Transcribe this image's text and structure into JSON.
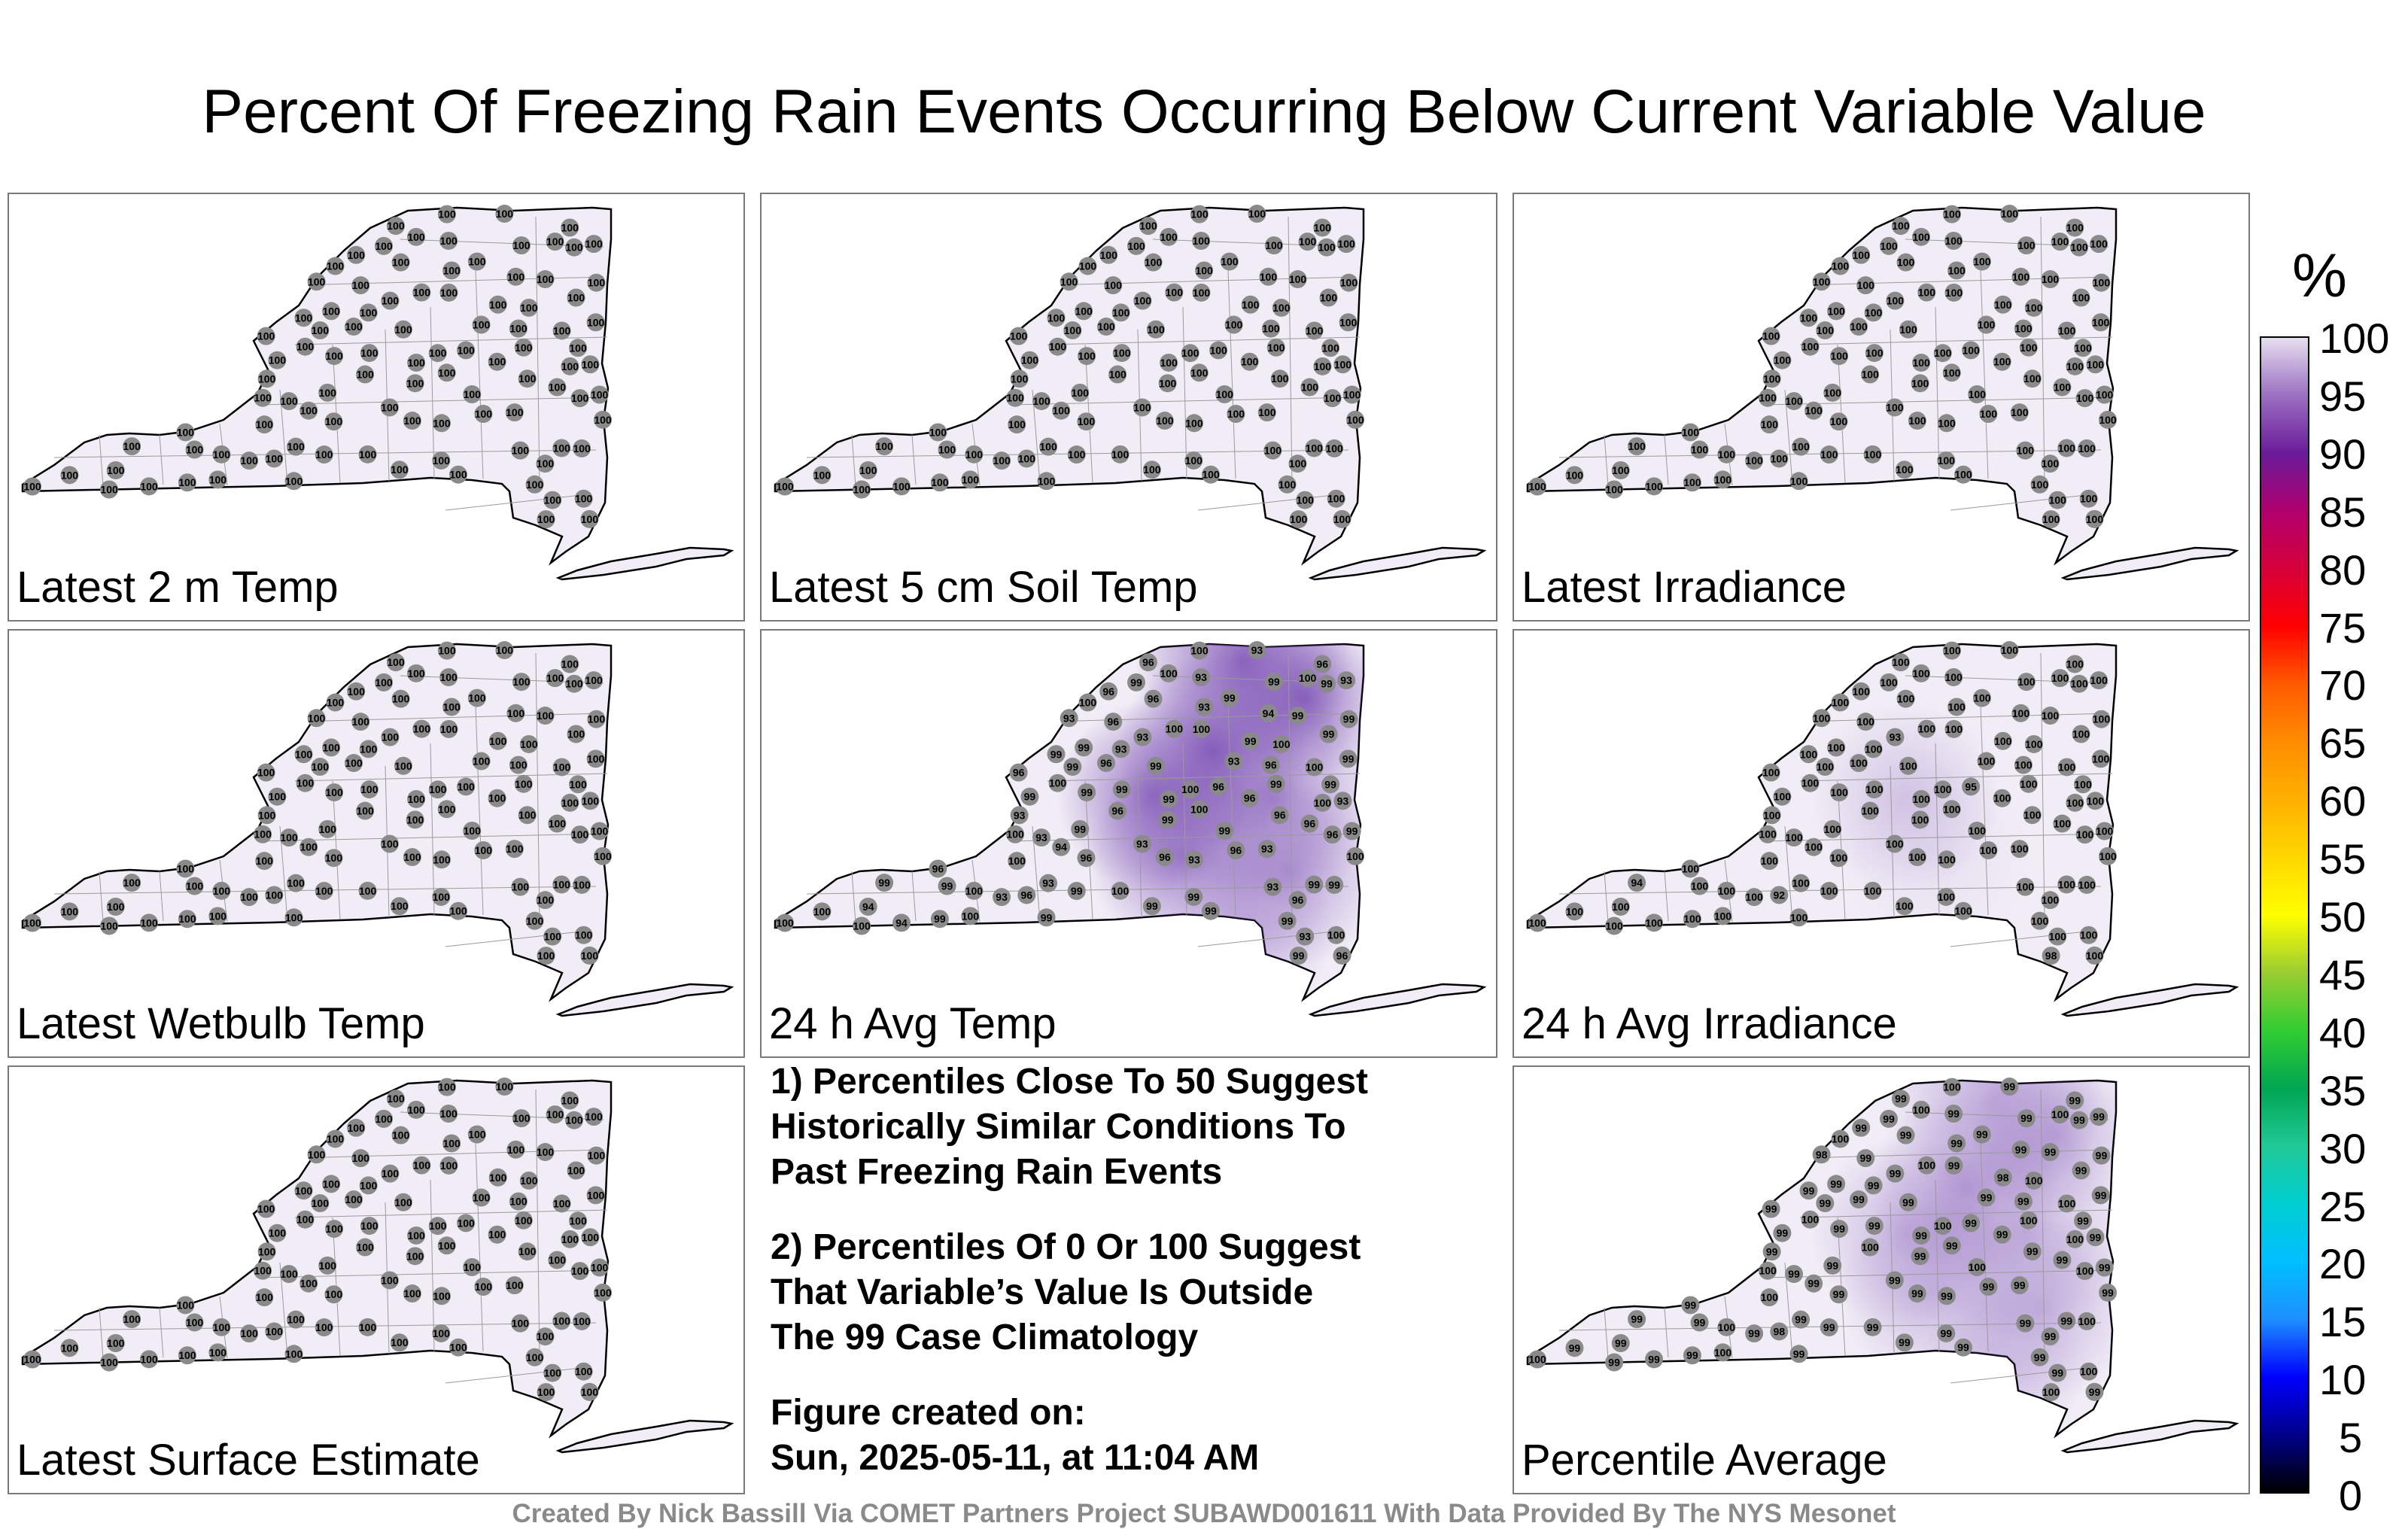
{
  "title": "Percent Of Freezing Rain Events Occurring Below Current Variable Value",
  "panels": [
    {
      "label": "Latest 2 m Temp",
      "values": [
        "100",
        "100",
        "100",
        "100",
        "100",
        "100",
        "100",
        "100",
        "100",
        "100",
        "100",
        "100",
        "100",
        "100",
        "100",
        "100",
        "100",
        "100",
        "100",
        "100",
        "100",
        "100",
        "100",
        "100",
        "100",
        "100",
        "100",
        "100",
        "100",
        "100",
        "100",
        "100",
        "100",
        "100",
        "100",
        "100",
        "100",
        "100",
        "100",
        "100",
        "100",
        "100",
        "100",
        "100",
        "100",
        "100",
        "100",
        "100",
        "100",
        "100",
        "100",
        "100",
        "100",
        "100",
        "100",
        "100",
        "100",
        "100",
        "100",
        "100",
        "100",
        "100",
        "100",
        "100",
        "100",
        "100",
        "100",
        "100",
        "100",
        "100",
        "100",
        "100",
        "100",
        "100",
        "100",
        "100",
        "100",
        "100",
        "100",
        "100",
        "100",
        "100",
        "100",
        "100",
        "100",
        "100",
        "100",
        "100",
        "100",
        "100",
        "100",
        "100",
        "100",
        "100",
        "100",
        "100",
        "100",
        "100",
        "100",
        "100"
      ],
      "shade": [
        0,
        0,
        0,
        0,
        0,
        0,
        0,
        0
      ]
    },
    {
      "label": "Latest 5 cm Soil Temp",
      "values": [
        "100",
        "100",
        "100",
        "100",
        "100",
        "100",
        "100",
        "100",
        "100",
        "100",
        "100",
        "100",
        "100",
        "100",
        "100",
        "100",
        "100",
        "100",
        "100",
        "100",
        "100",
        "100",
        "100",
        "100",
        "100",
        "100",
        "100",
        "100",
        "100",
        "100",
        "100",
        "100",
        "100",
        "100",
        "100",
        "100",
        "100",
        "100",
        "100",
        "100",
        "100",
        "100",
        "100",
        "100",
        "100",
        "100",
        "100",
        "100",
        "100",
        "100",
        "100",
        "100",
        "100",
        "100",
        "100",
        "100",
        "100",
        "100",
        "100",
        "100",
        "100",
        "100",
        "100",
        "100",
        "100",
        "100",
        "100",
        "100",
        "100",
        "100",
        "100",
        "100",
        "100",
        "100",
        "100",
        "100",
        "100",
        "100",
        "100",
        "100",
        "100",
        "100",
        "100",
        "100",
        "100",
        "100",
        "100",
        "100",
        "100",
        "100",
        "100",
        "100",
        "100",
        "100",
        "100",
        "100",
        "100",
        "100",
        "100",
        "100"
      ],
      "shade": [
        0,
        0,
        0,
        0,
        0,
        0,
        0,
        0
      ]
    },
    {
      "label": "Latest Irradiance",
      "values": [
        "100",
        "100",
        "100",
        "100",
        "100",
        "100",
        "100",
        "100",
        "100",
        "100",
        "100",
        "100",
        "100",
        "100",
        "100",
        "100",
        "100",
        "100",
        "100",
        "100",
        "100",
        "100",
        "100",
        "100",
        "100",
        "100",
        "100",
        "100",
        "100",
        "100",
        "100",
        "100",
        "100",
        "100",
        "100",
        "100",
        "100",
        "100",
        "100",
        "100",
        "100",
        "100",
        "100",
        "100",
        "100",
        "100",
        "100",
        "100",
        "100",
        "100",
        "100",
        "100",
        "100",
        "100",
        "100",
        "100",
        "100",
        "100",
        "100",
        "100",
        "100",
        "100",
        "100",
        "100",
        "100",
        "100",
        "100",
        "100",
        "100",
        "100",
        "100",
        "100",
        "100",
        "100",
        "100",
        "100",
        "100",
        "100",
        "100",
        "100",
        "100",
        "100",
        "100",
        "100",
        "100",
        "100",
        "100",
        "100",
        "100",
        "100",
        "100",
        "100",
        "100",
        "100",
        "100",
        "100",
        "100",
        "100",
        "100",
        "100"
      ],
      "shade": [
        0,
        0,
        0,
        0,
        0,
        0,
        0,
        0
      ]
    },
    {
      "label": "Latest Wetbulb Temp",
      "values": [
        "100",
        "100",
        "100",
        "100",
        "100",
        "100",
        "100",
        "100",
        "100",
        "100",
        "100",
        "100",
        "100",
        "100",
        "100",
        "100",
        "100",
        "100",
        "100",
        "100",
        "100",
        "100",
        "100",
        "100",
        "100",
        "100",
        "100",
        "100",
        "100",
        "100",
        "100",
        "100",
        "100",
        "100",
        "100",
        "100",
        "100",
        "100",
        "100",
        "100",
        "100",
        "100",
        "100",
        "100",
        "100",
        "100",
        "100",
        "100",
        "100",
        "100",
        "100",
        "100",
        "100",
        "100",
        "100",
        "100",
        "100",
        "100",
        "100",
        "100",
        "100",
        "100",
        "100",
        "100",
        "100",
        "100",
        "100",
        "100",
        "100",
        "100",
        "100",
        "100",
        "100",
        "100",
        "100",
        "100",
        "100",
        "100",
        "100",
        "100",
        "100",
        "100",
        "100",
        "100",
        "100",
        "100",
        "100",
        "100",
        "100",
        "100",
        "100",
        "100",
        "100",
        "100",
        "100",
        "100",
        "100",
        "100",
        "100",
        "100"
      ],
      "shade": [
        0,
        0,
        0,
        0,
        0,
        0,
        0,
        0
      ]
    },
    {
      "label": "24 h Avg Temp",
      "values": [
        "100",
        "100",
        "93",
        "93",
        "99",
        "99",
        "93",
        "96",
        "93",
        "93",
        "94",
        "93",
        "93",
        "93",
        "93",
        "96",
        "93",
        "93",
        "93",
        "93",
        "94",
        "93",
        "96",
        "93",
        "93",
        "96",
        "96",
        "100",
        "99",
        "100",
        "99",
        "99",
        "96",
        "100",
        "99",
        "99",
        "96",
        "100",
        "99",
        "99",
        "99",
        "100",
        "99",
        "99",
        "99",
        "99",
        "96",
        "99",
        "100",
        "100",
        "99",
        "99",
        "96",
        "96",
        "99",
        "93",
        "93",
        "99",
        "96",
        "99",
        "96",
        "96",
        "94",
        "96",
        "96",
        "96",
        "94",
        "99",
        "99",
        "96",
        "96",
        "99",
        "99",
        "99",
        "96",
        "99",
        "99",
        "99",
        "99",
        "100",
        "100",
        "96",
        "99",
        "99",
        "99",
        "96",
        "99",
        "99",
        "100",
        "100",
        "100",
        "100",
        "100",
        "100",
        "99",
        "100",
        "100",
        "100",
        "100",
        "100"
      ],
      "shade": [
        1,
        1,
        1,
        0.9,
        0.7,
        0.8,
        0.6,
        0.4
      ]
    },
    {
      "label": "24 h Avg Irradiance",
      "values": [
        "100",
        "100",
        "100",
        "100",
        "100",
        "100",
        "100",
        "100",
        "100",
        "100",
        "100",
        "100",
        "100",
        "100",
        "100",
        "100",
        "100",
        "100",
        "100",
        "93",
        "100",
        "100",
        "100",
        "100",
        "100",
        "100",
        "100",
        "100",
        "100",
        "100",
        "100",
        "100",
        "100",
        "100",
        "100",
        "100",
        "100",
        "100",
        "100",
        "100",
        "100",
        "100",
        "100",
        "100",
        "100",
        "100",
        "100",
        "100",
        "100",
        "100",
        "100",
        "100",
        "92",
        "95",
        "94",
        "100",
        "100",
        "100",
        "100",
        "100",
        "100",
        "100",
        "100",
        "100",
        "100",
        "100",
        "100",
        "98",
        "100",
        "100",
        "100",
        "100",
        "100",
        "100",
        "100",
        "100",
        "100",
        "100",
        "100",
        "100",
        "100",
        "100",
        "100",
        "100",
        "100",
        "100",
        "100",
        "100",
        "100",
        "100",
        "100",
        "100",
        "100",
        "100",
        "100",
        "100",
        "100",
        "100",
        "100",
        "100"
      ],
      "shade": [
        0,
        0,
        0,
        0.3,
        0,
        0.1,
        0,
        0
      ]
    },
    {
      "label": "Latest Surface Estimate",
      "values": [
        "100",
        "100",
        "100",
        "100",
        "100",
        "100",
        "100",
        "100",
        "100",
        "100",
        "100",
        "100",
        "100",
        "100",
        "100",
        "100",
        "100",
        "100",
        "100",
        "100",
        "100",
        "100",
        "100",
        "100",
        "100",
        "100",
        "100",
        "100",
        "100",
        "100",
        "100",
        "100",
        "100",
        "100",
        "100",
        "100",
        "100",
        "100",
        "100",
        "100",
        "100",
        "100",
        "100",
        "100",
        "100",
        "100",
        "100",
        "100",
        "100",
        "100",
        "100",
        "100",
        "100",
        "100",
        "100",
        "100",
        "100",
        "100",
        "100",
        "100",
        "100",
        "100",
        "100",
        "100",
        "100",
        "100",
        "100",
        "100",
        "100",
        "100",
        "100",
        "100",
        "100",
        "100",
        "100",
        "100",
        "100",
        "100",
        "100",
        "100",
        "100",
        "100",
        "100",
        "100",
        "100",
        "100",
        "100",
        "100",
        "100",
        "100",
        "100",
        "100",
        "100",
        "100",
        "100",
        "100",
        "100",
        "100",
        "100",
        "100"
      ],
      "shade": [
        0,
        0,
        0,
        0,
        0,
        0,
        0,
        0
      ]
    },
    {
      "label": "Percentile Average",
      "values": [
        "100",
        "100",
        "99",
        "99",
        "99",
        "98",
        "99",
        "99",
        "99",
        "99",
        "99",
        "99",
        "99",
        "99",
        "99",
        "99",
        "99",
        "99",
        "99",
        "99",
        "99",
        "99",
        "99",
        "99",
        "98",
        "99",
        "99",
        "99",
        "99",
        "99",
        "99",
        "99",
        "99",
        "99",
        "99",
        "99",
        "99",
        "99",
        "99",
        "99",
        "99",
        "99",
        "99",
        "99",
        "99",
        "99",
        "99",
        "99",
        "100",
        "99",
        "99",
        "99",
        "98",
        "99",
        "99",
        "99",
        "99",
        "99",
        "99",
        "99",
        "100",
        "99",
        "99",
        "99",
        "99",
        "99",
        "99",
        "100",
        "99",
        "99",
        "99",
        "99",
        "99",
        "99",
        "99",
        "99",
        "99",
        "99",
        "99",
        "100",
        "100",
        "100",
        "99",
        "99",
        "100",
        "99",
        "99",
        "100",
        "100",
        "100",
        "100",
        "100",
        "100",
        "100",
        "100",
        "100",
        "100",
        "100",
        "100",
        "100"
      ],
      "shade": [
        0.5,
        0.5,
        0.5,
        0.4,
        0.4,
        0.4,
        0.4,
        0.3
      ]
    }
  ],
  "notes": {
    "note1": "1) Percentiles Close To 50 Suggest\nHistorically Similar Conditions To\nPast Freezing Rain Events",
    "note2": "2) Percentiles Of 0 Or 100 Suggest\nThat Variable’s Value Is Outside\nThe 99 Case Climatology",
    "created": "Figure created on:\nSun, 2025-05-11, at 11:04 AM"
  },
  "colorbar": {
    "unit": "%",
    "ticks": [
      "0",
      "5",
      "10",
      "15",
      "20",
      "25",
      "30",
      "35",
      "40",
      "45",
      "50",
      "55",
      "60",
      "65",
      "70",
      "75",
      "80",
      "85",
      "90",
      "95",
      "100"
    ],
    "colors": [
      "#000000",
      "#00008b",
      "#0000ff",
      "#1e90ff",
      "#00bfff",
      "#00ced1",
      "#20c997",
      "#00a651",
      "#32cd32",
      "#9acd32",
      "#ffff00",
      "#ffd700",
      "#ffb000",
      "#ff8c00",
      "#ff5a00",
      "#ff0000",
      "#d6003b",
      "#b0006e",
      "#6a1b9a",
      "#9b6fc1",
      "#e6dff0"
    ]
  },
  "credit": "Created By Nick Bassill Via COMET Partners Project SUBAWD001611 With Data Provided By The NYS Mesonet",
  "colors": {
    "station": "#8a8a8a",
    "state_fill": "#f1edf6",
    "high_shade": "#7b4fb4"
  }
}
